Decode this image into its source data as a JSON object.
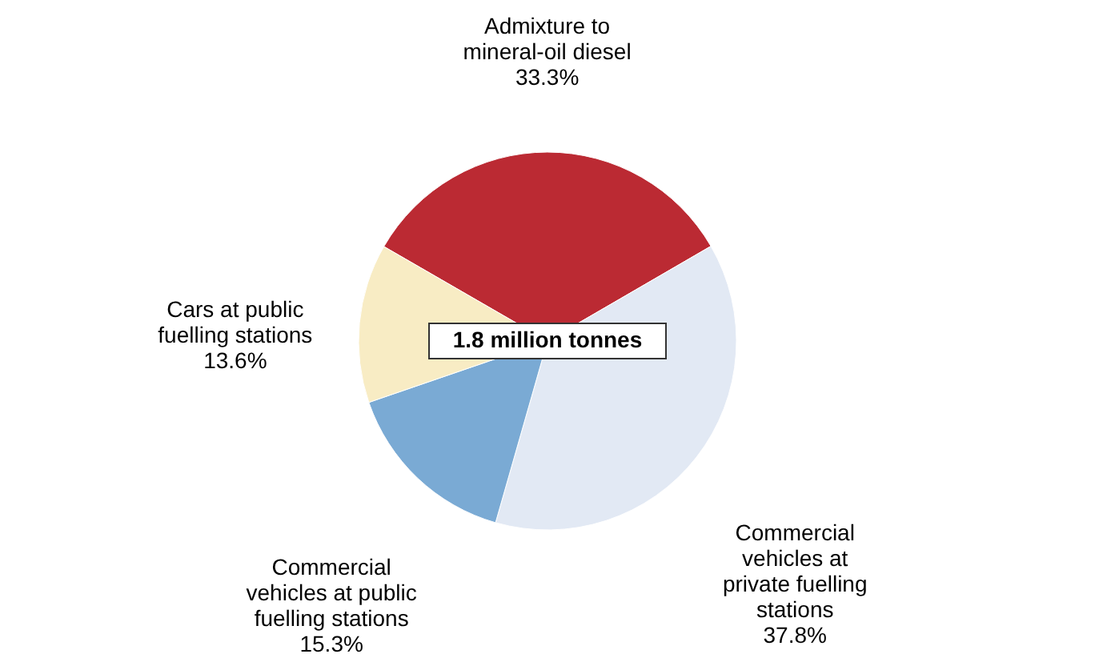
{
  "chart_data": {
    "type": "pie",
    "categories": [
      "Admixture to mineral-oil diesel",
      "Commercial vehicles at private fuelling stations",
      "Commercial vehicles at public fuelling stations",
      "Cars at public fuelling stations"
    ],
    "values": [
      33.3,
      37.8,
      15.3,
      13.6
    ],
    "value_labels": [
      "33.3%",
      "37.8%",
      "15.3%",
      "13.6%"
    ],
    "colors": [
      "#bb2a33",
      "#e2e9f4",
      "#7aaad4",
      "#f8ecc4"
    ],
    "annotations": [
      "1.8 million tonnes"
    ],
    "legend": false
  }
}
